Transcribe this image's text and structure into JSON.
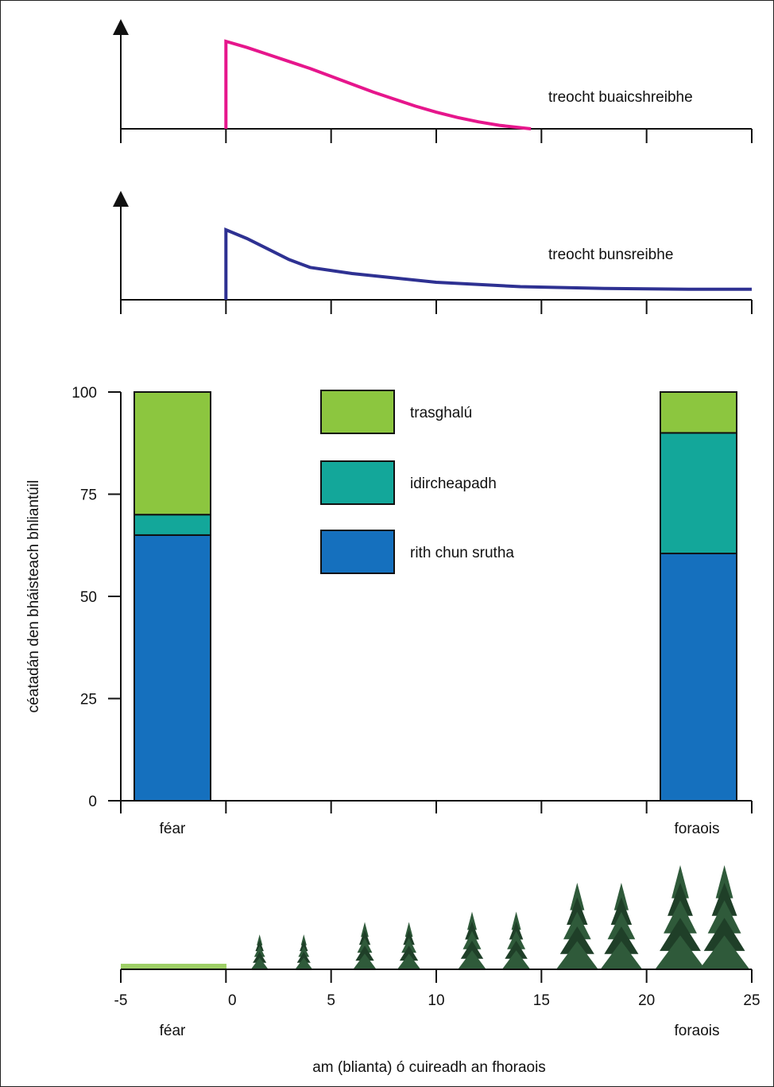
{
  "chart_data": [
    {
      "type": "line",
      "label": "treocht buaicshreibhe",
      "color": "#e6168c",
      "x_axis": {
        "min": -5,
        "max": 25,
        "ticks": [
          -5,
          0,
          5,
          10,
          15,
          20,
          25
        ]
      },
      "y_axis": {
        "min": 0,
        "max": 1.2
      },
      "x": [
        0,
        0,
        1,
        2,
        3,
        4,
        5,
        6,
        7,
        8,
        9,
        10,
        11,
        12,
        13,
        14.5
      ],
      "y": [
        0,
        1.0,
        0.93,
        0.85,
        0.77,
        0.69,
        0.6,
        0.51,
        0.42,
        0.34,
        0.26,
        0.19,
        0.13,
        0.08,
        0.04,
        0.0
      ]
    },
    {
      "type": "line",
      "label": "treocht bunsreibhe",
      "color": "#2e3192",
      "x_axis": {
        "min": -5,
        "max": 25,
        "ticks": [
          -5,
          0,
          5,
          10,
          15,
          20,
          25
        ]
      },
      "y_axis": {
        "min": 0,
        "max": 1.2
      },
      "x": [
        0,
        0,
        1,
        2,
        3,
        4,
        6,
        8,
        10,
        14,
        18,
        22,
        25
      ],
      "y": [
        0,
        0.8,
        0.7,
        0.58,
        0.46,
        0.37,
        0.3,
        0.25,
        0.2,
        0.15,
        0.13,
        0.12,
        0.12
      ]
    },
    {
      "type": "bar",
      "stacked": true,
      "ylabel": "céatadán den bháisteach bhliantúil",
      "ylim": [
        0,
        100
      ],
      "yticks": [
        0,
        25,
        50,
        75,
        100
      ],
      "categories": [
        "féar",
        "foraois"
      ],
      "series": [
        {
          "name": "rith chun srutha",
          "color": "#1570be",
          "values": [
            65,
            60.5
          ]
        },
        {
          "name": "idircheapadh",
          "color": "#13a79a",
          "values": [
            5,
            29.5
          ]
        },
        {
          "name": "trasghalú",
          "color": "#8cc63f",
          "values": [
            30,
            10
          ]
        }
      ]
    }
  ],
  "timeline": {
    "x_axis": {
      "min": -5,
      "max": 25,
      "ticks": [
        -5,
        0,
        5,
        10,
        15,
        20,
        25
      ]
    },
    "tick_labels": [
      "-5",
      "0",
      "5",
      "10",
      "15",
      "20",
      "25"
    ],
    "start_label": "féar",
    "end_label": "foraois",
    "xlabel": "am (blianta) ó cuireadh an fhoraois",
    "tree_growth": [
      {
        "year": 1.6,
        "scale": 0.33
      },
      {
        "year": 3.7,
        "scale": 0.33
      },
      {
        "year": 6.6,
        "scale": 0.45
      },
      {
        "year": 8.7,
        "scale": 0.45
      },
      {
        "year": 11.7,
        "scale": 0.55
      },
      {
        "year": 13.8,
        "scale": 0.55
      },
      {
        "year": 16.7,
        "scale": 0.83
      },
      {
        "year": 18.8,
        "scale": 0.83
      },
      {
        "year": 21.6,
        "scale": 1.0
      },
      {
        "year": 23.7,
        "scale": 1.0
      }
    ]
  },
  "colors": {
    "axis": "#111111",
    "tree": "#2f5a3a",
    "tree_dark": "#1f3f28",
    "grass": "#9ecf66"
  }
}
